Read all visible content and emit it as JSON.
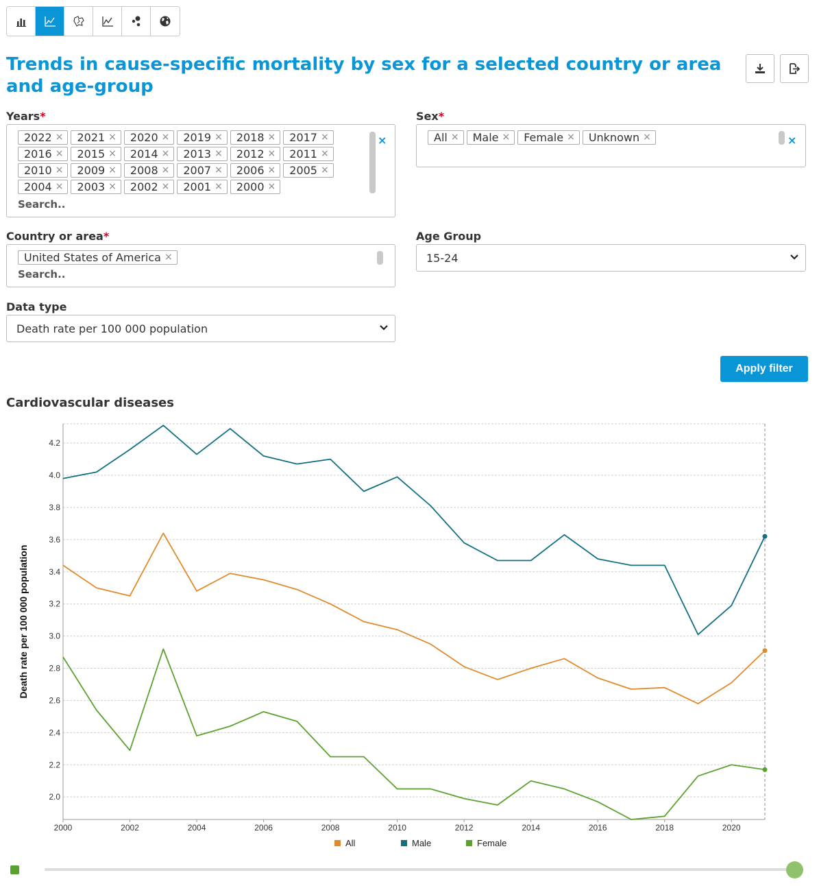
{
  "toolbar": {
    "buttons": [
      {
        "icon": "bar-chart-icon",
        "active": false
      },
      {
        "icon": "line-chart-icon",
        "active": true
      },
      {
        "icon": "map-icon",
        "active": false
      },
      {
        "icon": "trend-chart-icon",
        "active": false
      },
      {
        "icon": "bubble-chart-icon",
        "active": false
      },
      {
        "icon": "globe-icon",
        "active": false
      }
    ]
  },
  "title": "Trends in cause-specific mortality by sex for a selected country or area and age-group",
  "export": {
    "download_icon": "download-icon",
    "export_icon": "export-icon"
  },
  "filters": {
    "years": {
      "label": "Years",
      "required_mark": "*",
      "chips": [
        "2022",
        "2021",
        "2020",
        "2019",
        "2018",
        "2017",
        "2016",
        "2015",
        "2014",
        "2013",
        "2012",
        "2011",
        "2010",
        "2009",
        "2008",
        "2007",
        "2006",
        "2005",
        "2004",
        "2003",
        "2002",
        "2001",
        "2000"
      ],
      "search_placeholder": "Search..",
      "clear": "×"
    },
    "sex": {
      "label": "Sex",
      "required_mark": "*",
      "chips": [
        "All",
        "Male",
        "Female",
        "Unknown"
      ],
      "clear": "×"
    },
    "country": {
      "label": "Country or area",
      "required_mark": "*",
      "chips": [
        "United States of America"
      ],
      "search_placeholder": "Search.."
    },
    "age_group": {
      "label": "Age Group",
      "value": "15-24"
    },
    "data_type": {
      "label": "Data type",
      "value": "Death rate per 100 000 population"
    },
    "chip_remove": "×",
    "apply_label": "Apply filter"
  },
  "colors": {
    "accent": "#0a96d6",
    "all": "#e08a2c",
    "male": "#116f82",
    "female": "#5ba12f",
    "required": "#d0021b"
  },
  "chart_title": "Cardiovascular diseases",
  "chart_data": {
    "type": "line",
    "title": "Cardiovascular diseases",
    "xlabel": "",
    "ylabel": "Death rate per 100 000 population",
    "x": [
      2000,
      2001,
      2002,
      2003,
      2004,
      2005,
      2006,
      2007,
      2008,
      2009,
      2010,
      2011,
      2012,
      2013,
      2014,
      2015,
      2016,
      2017,
      2018,
      2019,
      2020,
      2021
    ],
    "xlim": [
      2000,
      2021
    ],
    "ylim": [
      1.86,
      4.32
    ],
    "xticks": [
      2000,
      2002,
      2004,
      2006,
      2008,
      2010,
      2012,
      2014,
      2016,
      2018,
      2020
    ],
    "yticks": [
      2.0,
      2.2,
      2.4,
      2.6,
      2.8,
      3.0,
      3.2,
      3.4,
      3.6,
      3.8,
      4.0,
      4.2
    ],
    "legend_position": "bottom",
    "series": [
      {
        "name": "All",
        "color": "#e08a2c",
        "values": [
          3.44,
          3.3,
          3.25,
          3.64,
          3.28,
          3.39,
          3.35,
          3.29,
          3.2,
          3.09,
          3.04,
          2.95,
          2.81,
          2.73,
          2.8,
          2.86,
          2.74,
          2.67,
          2.68,
          2.58,
          2.71,
          2.91
        ]
      },
      {
        "name": "Male",
        "color": "#116f82",
        "values": [
          3.98,
          4.02,
          4.16,
          4.31,
          4.13,
          4.29,
          4.12,
          4.07,
          4.1,
          3.9,
          3.99,
          3.81,
          3.58,
          3.47,
          3.47,
          3.63,
          3.48,
          3.44,
          3.44,
          3.01,
          3.19,
          3.62
        ]
      },
      {
        "name": "Female",
        "color": "#5ba12f",
        "values": [
          2.87,
          2.54,
          2.29,
          2.92,
          2.38,
          2.44,
          2.53,
          2.47,
          2.25,
          2.25,
          2.05,
          2.05,
          1.99,
          1.95,
          2.1,
          2.05,
          1.97,
          1.86,
          1.88,
          2.13,
          2.2,
          2.17
        ]
      }
    ]
  },
  "year_slider": {
    "start": 2000,
    "end": 2021
  }
}
